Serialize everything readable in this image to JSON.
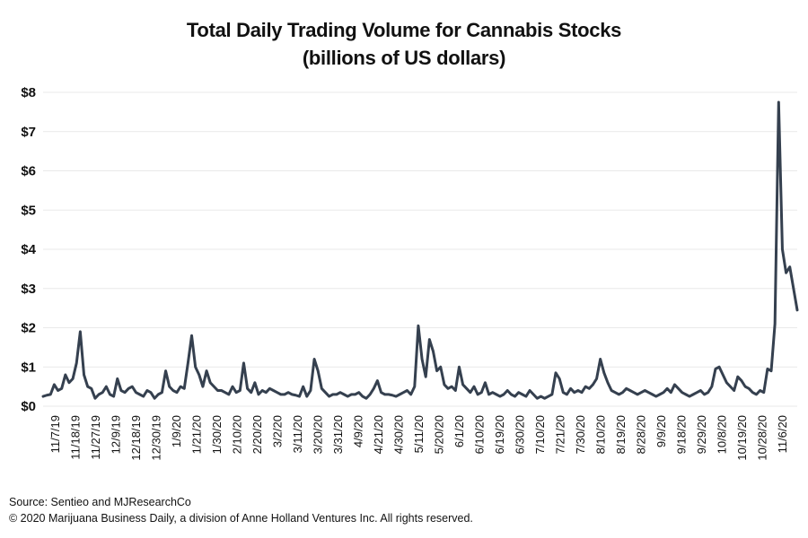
{
  "chart_data": {
    "type": "line",
    "title": "Total Daily Trading Volume for Cannabis Stocks",
    "subtitle": "(billions of US dollars)",
    "xlabel": "",
    "ylabel": "",
    "ylim": [
      0,
      8
    ],
    "yticks": [
      "$0",
      "$1",
      "$2",
      "$3",
      "$4",
      "$5",
      "$6",
      "$7",
      "$8"
    ],
    "grid": true,
    "legend": "none",
    "line_color": "#35404f",
    "x_tick_labels": [
      "11/7/19",
      "11/18/19",
      "11/27/19",
      "12/9/19",
      "12/18/19",
      "12/30/19",
      "1/9/20",
      "1/21/20",
      "1/30/20",
      "2/10/20",
      "2/20/20",
      "3/2/20",
      "3/11/20",
      "3/20/20",
      "3/31/20",
      "4/9/20",
      "4/21/20",
      "4/30/20",
      "5/11/20",
      "5/20/20",
      "6/1/20",
      "6/10/20",
      "6/19/20",
      "6/30/20",
      "7/10/20",
      "7/21/20",
      "7/30/20",
      "8/10/20",
      "8/19/20",
      "8/28/20",
      "9/9/20",
      "9/18/20",
      "9/29/20",
      "10/8/20",
      "10/19/20",
      "10/28/20",
      "11/6/20"
    ],
    "series": [
      {
        "values": [
          0.25,
          0.28,
          0.3,
          0.55,
          0.4,
          0.45,
          0.8,
          0.6,
          0.7,
          1.1,
          1.9,
          0.8,
          0.5,
          0.45,
          0.2,
          0.3,
          0.35,
          0.5,
          0.3,
          0.25,
          0.7,
          0.4,
          0.35,
          0.45,
          0.5,
          0.35,
          0.3,
          0.25,
          0.4,
          0.35,
          0.2,
          0.3,
          0.35,
          0.9,
          0.5,
          0.4,
          0.35,
          0.5,
          0.45,
          1.1,
          1.8,
          1.0,
          0.8,
          0.5,
          0.9,
          0.6,
          0.5,
          0.4,
          0.4,
          0.35,
          0.3,
          0.5,
          0.35,
          0.4,
          1.1,
          0.45,
          0.35,
          0.6,
          0.3,
          0.4,
          0.35,
          0.45,
          0.4,
          0.35,
          0.3,
          0.3,
          0.35,
          0.3,
          0.28,
          0.25,
          0.5,
          0.25,
          0.4,
          1.2,
          0.9,
          0.45,
          0.35,
          0.25,
          0.3,
          0.3,
          0.35,
          0.3,
          0.25,
          0.3,
          0.3,
          0.35,
          0.25,
          0.2,
          0.3,
          0.45,
          0.65,
          0.35,
          0.3,
          0.3,
          0.28,
          0.25,
          0.3,
          0.35,
          0.4,
          0.3,
          0.5,
          2.05,
          1.2,
          0.75,
          1.7,
          1.4,
          0.9,
          1.0,
          0.55,
          0.45,
          0.5,
          0.4,
          1.0,
          0.55,
          0.45,
          0.35,
          0.5,
          0.3,
          0.35,
          0.6,
          0.3,
          0.35,
          0.3,
          0.25,
          0.3,
          0.4,
          0.3,
          0.25,
          0.35,
          0.3,
          0.25,
          0.4,
          0.3,
          0.2,
          0.25,
          0.2,
          0.25,
          0.3,
          0.85,
          0.7,
          0.35,
          0.3,
          0.45,
          0.35,
          0.4,
          0.35,
          0.5,
          0.45,
          0.55,
          0.7,
          1.2,
          0.85,
          0.6,
          0.4,
          0.35,
          0.3,
          0.35,
          0.45,
          0.4,
          0.35,
          0.3,
          0.35,
          0.4,
          0.35,
          0.3,
          0.25,
          0.3,
          0.35,
          0.45,
          0.35,
          0.55,
          0.45,
          0.35,
          0.3,
          0.25,
          0.3,
          0.35,
          0.4,
          0.3,
          0.35,
          0.5,
          0.95,
          1.0,
          0.8,
          0.6,
          0.5,
          0.4,
          0.75,
          0.65,
          0.5,
          0.45,
          0.35,
          0.3,
          0.4,
          0.35,
          0.95,
          0.9,
          2.1,
          7.75,
          4.0,
          3.4,
          3.55,
          3.0,
          2.45
        ]
      }
    ]
  },
  "footer": {
    "source": "Source: Sentieo and MJResearchCo",
    "copyright": "© 2020 Marijuana Business Daily, a division of Anne Holland Ventures Inc. All rights reserved."
  }
}
